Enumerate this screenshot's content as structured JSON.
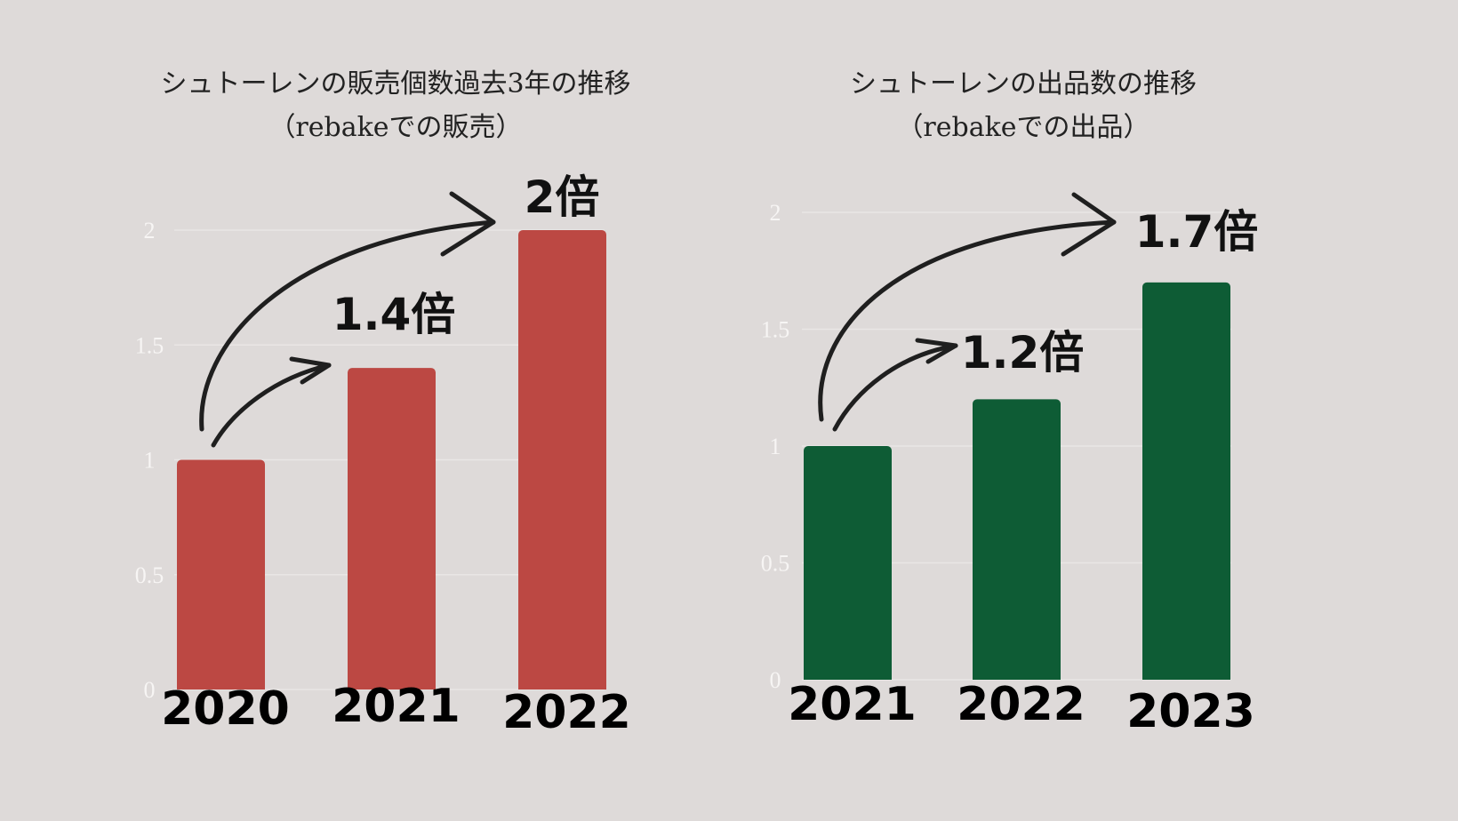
{
  "chart_data": [
    {
      "type": "bar",
      "title": "シュトーレンの販売個数過去3年の推移",
      "subtitle": "（rebakeでの販売）",
      "categories": [
        "2020",
        "2021",
        "2022"
      ],
      "values": [
        1,
        1.4,
        2
      ],
      "ylim": [
        0,
        2
      ],
      "yticks": [
        "0",
        "0.5",
        "1",
        "1.5",
        "2"
      ],
      "grid": true,
      "xlabel": "",
      "ylabel": "",
      "color": "#bc4843",
      "annotations": [
        "1.4倍",
        "2倍"
      ]
    },
    {
      "type": "bar",
      "title": "シュトーレンの出品数の推移",
      "subtitle": "（rebakeでの出品）",
      "categories": [
        "2021",
        "2022",
        "2023"
      ],
      "values": [
        1,
        1.2,
        1.7
      ],
      "ylim": [
        0,
        2
      ],
      "yticks": [
        "0",
        "0.5",
        "1",
        "1.5",
        "2"
      ],
      "grid": true,
      "xlabel": "",
      "ylabel": "",
      "color": "#0e5c35",
      "annotations": [
        "1.2倍",
        "1.7倍"
      ]
    }
  ]
}
